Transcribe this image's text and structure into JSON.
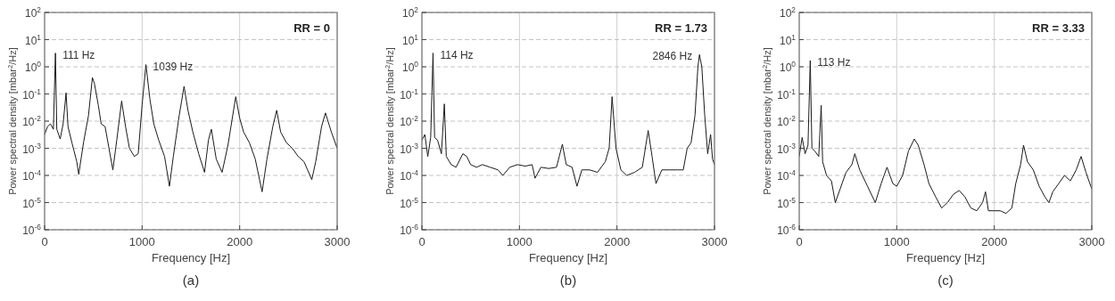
{
  "chart_data": [
    {
      "type": "line",
      "title": "(a)",
      "xlabel": "Frequency [Hz]",
      "ylabel": "Power spectral density [mbar$^{2}$/Hz]",
      "log": "y",
      "grid": true,
      "color": "#1a1a1a",
      "xlim": [
        0,
        3000
      ],
      "xticks": [
        0,
        1000,
        2000,
        3000
      ],
      "ylim": [
        1e-06,
        100
      ],
      "yticks": [
        {
          "value": 1e-06,
          "label": "10$^{-6}$"
        },
        {
          "value": 1e-05,
          "label": "10$^{-5}$"
        },
        {
          "value": 0.0001,
          "label": "10$^{-4}$"
        },
        {
          "value": 0.001,
          "label": "10$^{-3}$"
        },
        {
          "value": 0.01,
          "label": "10$^{-2}$"
        },
        {
          "value": 0.1,
          "label": "10$^{-1}$"
        },
        {
          "value": 1,
          "label": "10$^{0}$"
        },
        {
          "value": 10,
          "label": "10$^{1}$"
        },
        {
          "value": 100,
          "label": "10$^{2}$"
        }
      ],
      "x": [
        0,
        30,
        60,
        90,
        111,
        125,
        160,
        190,
        220,
        240,
        280,
        330,
        350,
        400,
        450,
        490,
        510,
        550,
        580,
        620,
        660,
        700,
        740,
        790,
        830,
        870,
        920,
        960,
        1000,
        1039,
        1080,
        1120,
        1170,
        1230,
        1280,
        1320,
        1380,
        1430,
        1470,
        1520,
        1580,
        1640,
        1680,
        1710,
        1760,
        1820,
        1880,
        1960,
        2000,
        2040,
        2100,
        2160,
        2230,
        2280,
        2340,
        2380,
        2420,
        2480,
        2540,
        2600,
        2660,
        2740,
        2780,
        2840,
        2880,
        2940,
        3000
      ],
      "values": [
        0.0032,
        0.0063,
        0.0079,
        0.005,
        3.2,
        0.005,
        0.0022,
        0.0079,
        0.11,
        0.0063,
        0.0016,
        0.00032,
        0.00011,
        0.0017,
        0.016,
        0.4,
        0.25,
        0.04,
        0.0079,
        0.0063,
        0.001,
        0.00016,
        0.002,
        0.055,
        0.0063,
        0.001,
        0.0005,
        0.00063,
        0.04,
        1.2,
        0.063,
        0.0079,
        0.002,
        0.0005,
        4e-05,
        0.0005,
        0.016,
        0.19,
        0.025,
        0.004,
        0.00063,
        0.00013,
        0.002,
        0.005,
        0.0004,
        0.00013,
        0.0013,
        0.079,
        0.013,
        0.004,
        0.0016,
        0.0004,
        2.5e-05,
        0.0004,
        0.0063,
        0.025,
        0.004,
        0.0016,
        0.001,
        0.0005,
        0.00032,
        7e-05,
        0.00032,
        0.0063,
        0.02,
        0.004,
        0.001
      ],
      "annotations": [
        {
          "text": "111 Hz",
          "x": 111,
          "y": 3.2
        },
        {
          "text": "1039 Hz",
          "x": 1039,
          "y": 1.2
        },
        "RR = 0"
      ]
    },
    {
      "type": "line",
      "title": "(b)",
      "xlabel": "Frequency [Hz]",
      "ylabel": "Power spectral density [mbar$^{2}$/Hz]",
      "log": "y",
      "grid": true,
      "color": "#1a1a1a",
      "xlim": [
        0,
        3000
      ],
      "xticks": [
        0,
        1000,
        2000,
        3000
      ],
      "ylim": [
        1e-06,
        100
      ],
      "yticks": [
        {
          "value": 1e-06,
          "label": "10$^{-6}$"
        },
        {
          "value": 1e-05,
          "label": "10$^{-5}$"
        },
        {
          "value": 0.0001,
          "label": "10$^{-4}$"
        },
        {
          "value": 0.001,
          "label": "10$^{-3}$"
        },
        {
          "value": 0.01,
          "label": "10$^{-2}$"
        },
        {
          "value": 0.1,
          "label": "10$^{-1}$"
        },
        {
          "value": 1,
          "label": "10$^{0}$"
        },
        {
          "value": 10,
          "label": "10$^{1}$"
        },
        {
          "value": 100,
          "label": "10$^{2}$"
        }
      ],
      "x": [
        0,
        30,
        60,
        90,
        114,
        130,
        160,
        200,
        230,
        250,
        300,
        350,
        420,
        460,
        500,
        560,
        620,
        700,
        780,
        830,
        900,
        980,
        1060,
        1130,
        1160,
        1220,
        1300,
        1380,
        1440,
        1480,
        1540,
        1590,
        1640,
        1720,
        1800,
        1880,
        1920,
        1950,
        1990,
        2040,
        2100,
        2180,
        2260,
        2320,
        2360,
        2400,
        2460,
        2540,
        2620,
        2680,
        2720,
        2760,
        2800,
        2830,
        2846,
        2870,
        2900,
        2930,
        2960,
        2980,
        3000
      ],
      "values": [
        0.002,
        0.0032,
        0.0005,
        0.0025,
        3.2,
        0.0025,
        0.002,
        0.00063,
        0.043,
        0.0005,
        0.00025,
        0.0002,
        0.00063,
        0.0005,
        0.00025,
        0.0002,
        0.00025,
        0.0002,
        0.00016,
        0.0001,
        0.0002,
        0.00025,
        0.00022,
        0.00025,
        7.9e-05,
        0.0002,
        0.00018,
        0.0002,
        0.0014,
        0.00025,
        0.0002,
        4e-05,
        0.00016,
        0.00016,
        0.00013,
        0.00032,
        0.001,
        0.079,
        0.001,
        0.00016,
        0.0001,
        0.00013,
        0.0002,
        0.0045,
        0.0005,
        5e-05,
        0.00016,
        0.00016,
        0.00016,
        0.00016,
        0.001,
        0.0016,
        0.016,
        1,
        2.8,
        1,
        0.016,
        0.00063,
        0.0032,
        0.0004,
        0.00025
      ],
      "annotations": [
        {
          "text": "114 Hz",
          "x": 114,
          "y": 3.2
        },
        {
          "text": "2846 Hz",
          "x": 2846,
          "y": 2.8
        },
        "RR = 1.73"
      ]
    },
    {
      "type": "line",
      "title": "(c)",
      "xlabel": "Frequency [Hz]",
      "ylabel": "Power spectral density [mbar$^{2}$/Hz]",
      "log": "y",
      "grid": true,
      "color": "#1a1a1a",
      "xlim": [
        0,
        3000
      ],
      "xticks": [
        0,
        1000,
        2000,
        3000
      ],
      "ylim": [
        1e-06,
        100
      ],
      "yticks": [
        {
          "value": 1e-06,
          "label": "10$^{-6}$"
        },
        {
          "value": 1e-05,
          "label": "10$^{-5}$"
        },
        {
          "value": 0.0001,
          "label": "10$^{-4}$"
        },
        {
          "value": 0.001,
          "label": "10$^{-3}$"
        },
        {
          "value": 0.01,
          "label": "10$^{-2}$"
        },
        {
          "value": 0.1,
          "label": "10$^{-1}$"
        },
        {
          "value": 1,
          "label": "10$^{0}$"
        },
        {
          "value": 10,
          "label": "10$^{1}$"
        },
        {
          "value": 100,
          "label": "10$^{2}$"
        }
      ],
      "x": [
        0,
        30,
        60,
        90,
        113,
        130,
        160,
        200,
        225,
        240,
        280,
        330,
        370,
        420,
        480,
        540,
        570,
        620,
        700,
        780,
        840,
        900,
        960,
        1000,
        1060,
        1120,
        1180,
        1220,
        1280,
        1330,
        1400,
        1460,
        1520,
        1580,
        1640,
        1700,
        1760,
        1820,
        1880,
        1910,
        1940,
        2000,
        2060,
        2120,
        2180,
        2220,
        2270,
        2300,
        2340,
        2400,
        2460,
        2520,
        2560,
        2600,
        2660,
        2720,
        2780,
        2840,
        2890,
        2940,
        2980,
        3000
      ],
      "values": [
        0.0005,
        0.0025,
        0.00063,
        0.0013,
        1.7,
        0.001,
        0.00079,
        0.0005,
        0.038,
        0.00032,
        0.0001,
        6.3e-05,
        1e-05,
        3.2e-05,
        0.00013,
        0.00025,
        0.00063,
        0.00016,
        4e-05,
        1e-05,
        5e-05,
        0.0002,
        5e-05,
        4e-05,
        0.0001,
        0.00079,
        0.0022,
        0.0013,
        0.00025,
        5e-05,
        1.6e-05,
        6.3e-06,
        1e-05,
        2e-05,
        2.8e-05,
        1.6e-05,
        6.3e-06,
        5e-06,
        1e-05,
        2.5e-05,
        5e-06,
        5e-06,
        5e-06,
        4e-06,
        6.3e-06,
        5e-05,
        0.00025,
        0.0013,
        0.00032,
        0.00016,
        4e-05,
        1.6e-05,
        1e-05,
        2.5e-05,
        5e-05,
        0.0001,
        6.3e-05,
        0.00016,
        0.0005,
        0.00013,
        5e-05,
        3.2e-05
      ],
      "annotations": [
        {
          "text": "113 Hz",
          "x": 113,
          "y": 1.7
        },
        "RR = 3.33"
      ]
    }
  ]
}
